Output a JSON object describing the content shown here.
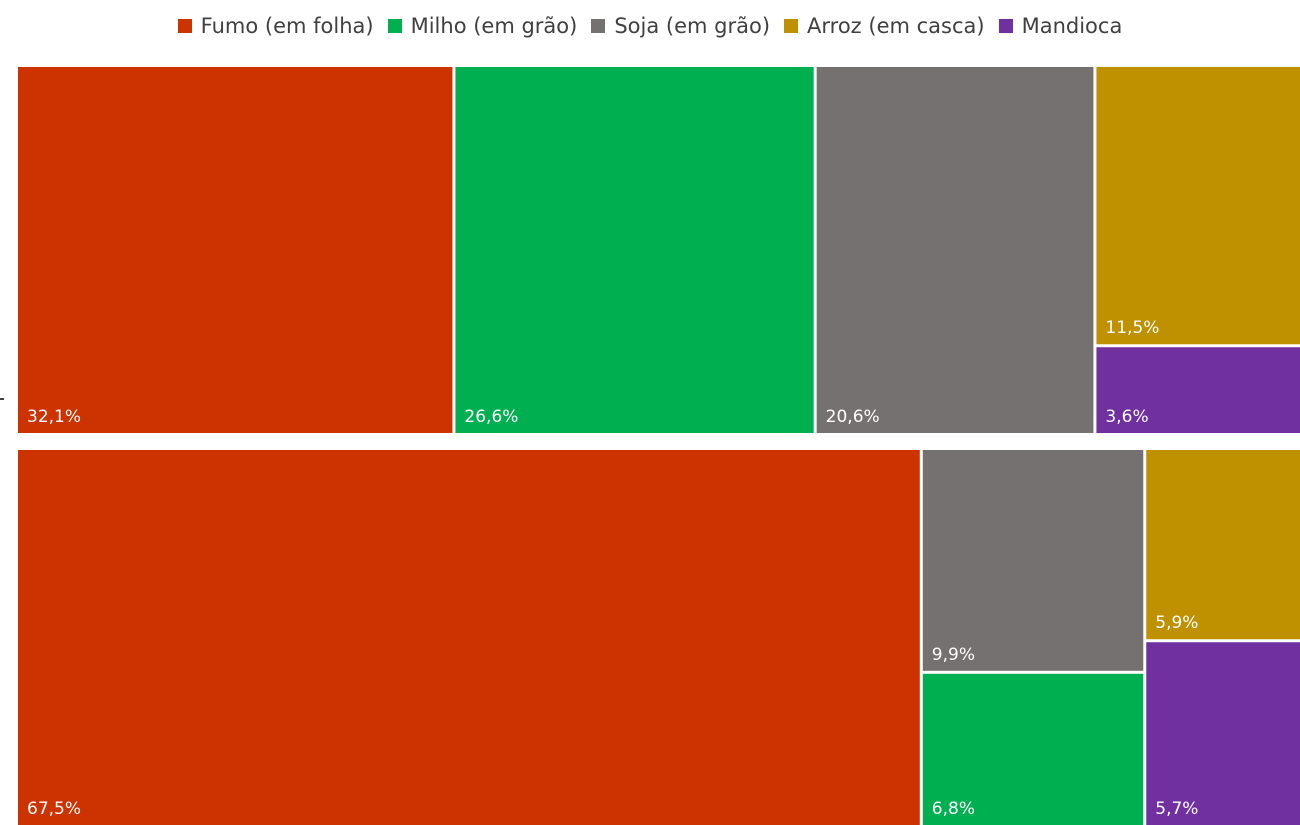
{
  "chart_data": {
    "type": "treemap",
    "title": "",
    "legend": {
      "placement": "top",
      "entries": [
        {
          "name": "Fumo (em folha)",
          "color": "#CC3300"
        },
        {
          "name": "Milho (em grão)",
          "color": "#00B050"
        },
        {
          "name": "Soja (em grão)",
          "color": "#767171"
        },
        {
          "name": "Arroz (em casca)",
          "color": "#BF9000"
        },
        {
          "name": "Mandioca",
          "color": "#7030A0"
        }
      ]
    },
    "groups": [
      {
        "name": "",
        "values": [
          {
            "category": "Fumo (em folha)",
            "value": 32.1,
            "label": "32,1%"
          },
          {
            "category": "Milho (em grão)",
            "value": 26.6,
            "label": "26,6%"
          },
          {
            "category": "Soja (em grão)",
            "value": 20.6,
            "label": "20,6%"
          },
          {
            "category": "Arroz (em casca)",
            "value": 11.5,
            "label": "11,5%"
          },
          {
            "category": "Mandioca",
            "value": 3.6,
            "label": "3,6%"
          }
        ]
      },
      {
        "name": "",
        "values": [
          {
            "category": "Fumo (em folha)",
            "value": 67.5,
            "label": "67,5%"
          },
          {
            "category": "Soja (em grão)",
            "value": 9.9,
            "label": "9,9%"
          },
          {
            "category": "Milho (em grão)",
            "value": 6.8,
            "label": "6,8%"
          },
          {
            "category": "Arroz (em casca)",
            "value": 5.9,
            "label": "5,9%"
          },
          {
            "category": "Mandioca",
            "value": 5.7,
            "label": "5,7%"
          }
        ]
      }
    ]
  }
}
